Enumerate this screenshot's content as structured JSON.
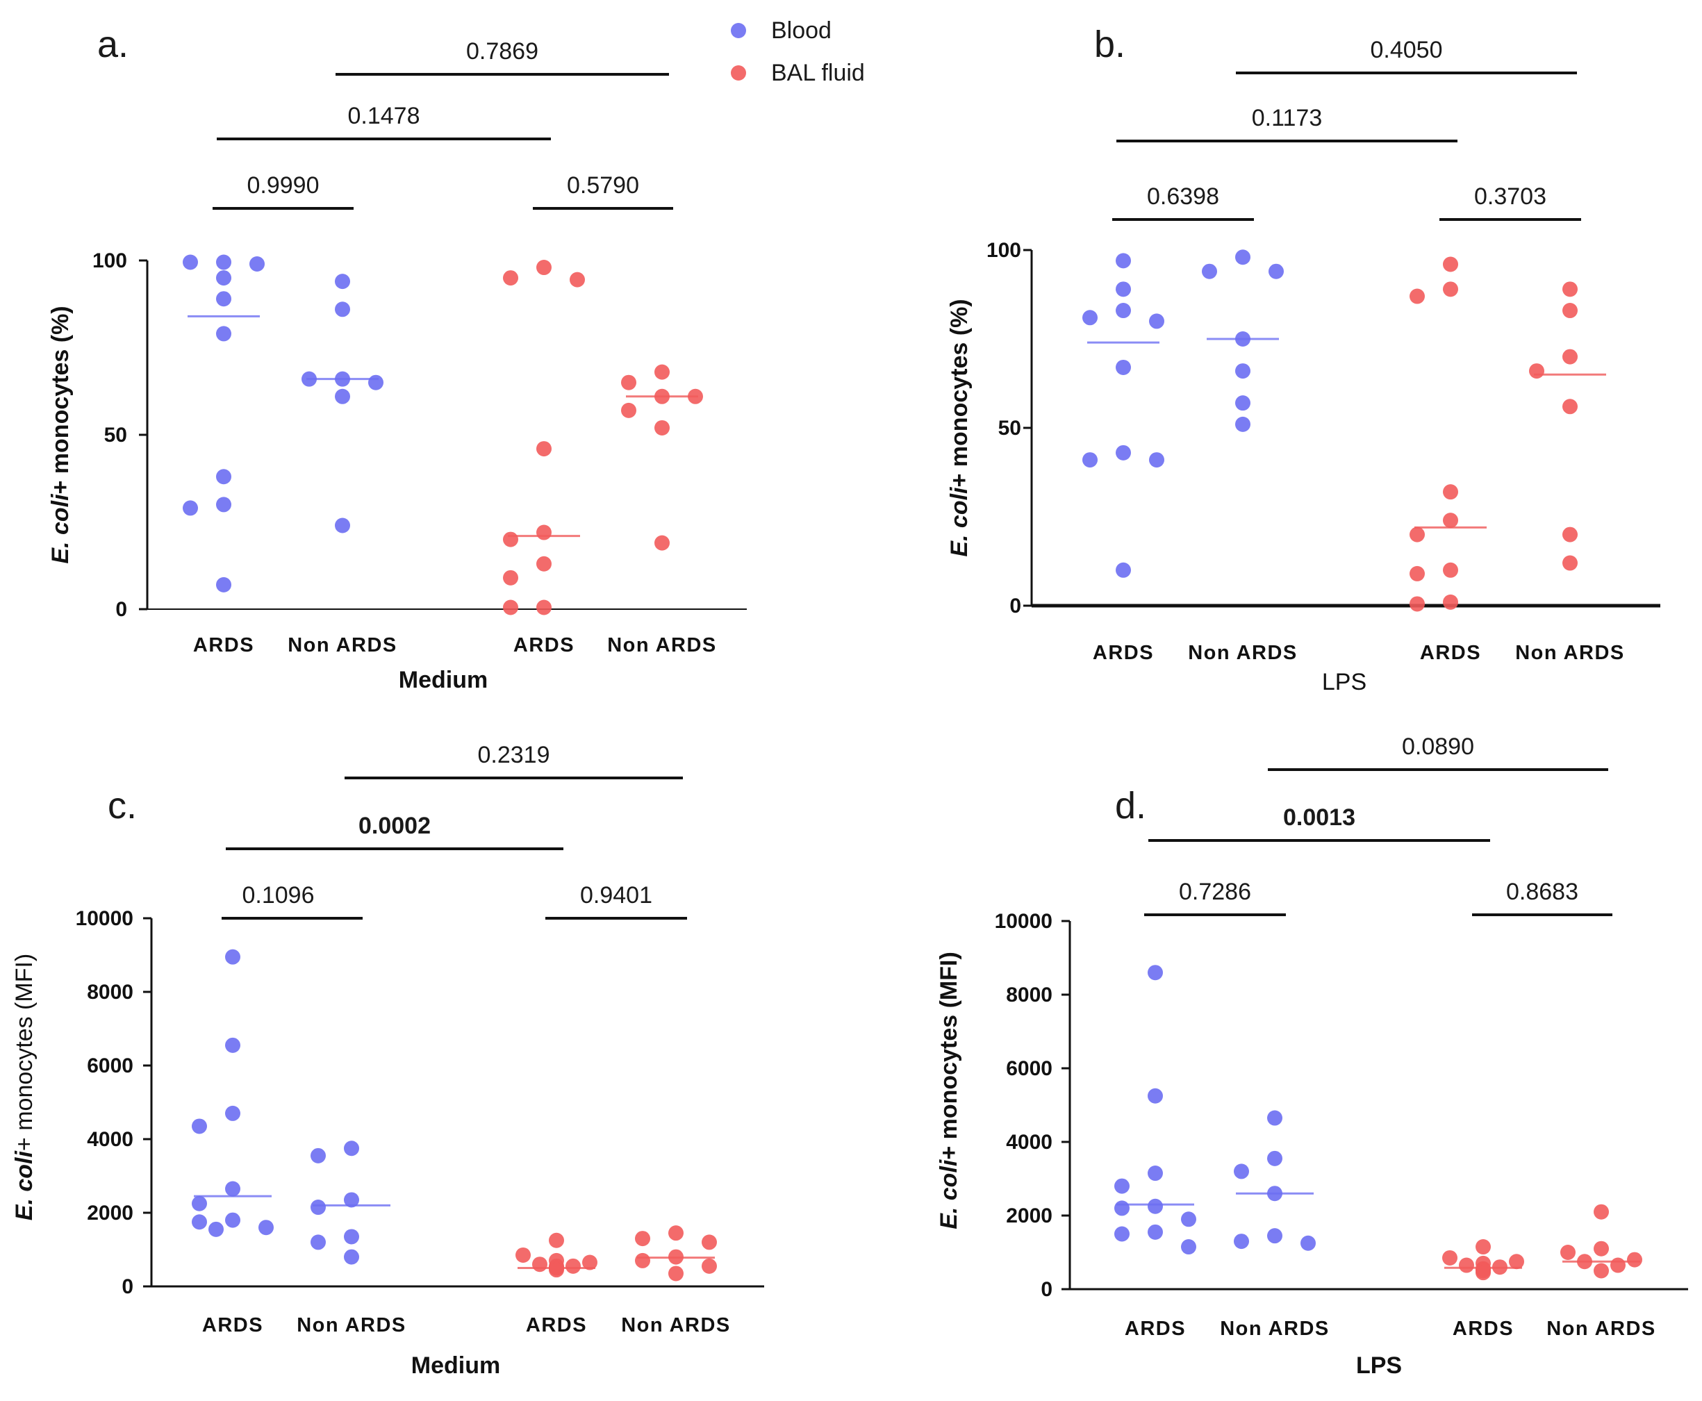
{
  "legend": {
    "items": [
      {
        "label": "Blood",
        "color": "#6b6ef2"
      },
      {
        "label": "BAL fluid",
        "color": "#f25b5b"
      }
    ]
  },
  "colors": {
    "blood": "#6b6ef2",
    "bal": "#f25b5b",
    "blood_median": "#8a8cf5",
    "bal_median": "#f27a7a",
    "axis": "#111111"
  },
  "chart_data": [
    {
      "panel": "a.",
      "type": "scatter",
      "xlabel": "Medium",
      "ylabel_italic": "E. coli",
      "ylabel_rest": "+ monocytes (%)",
      "ylim": [
        0,
        100
      ],
      "yticks": [
        "0",
        "50",
        "100"
      ],
      "groups": [
        {
          "label": "ARDS",
          "series": "Blood",
          "median": 84,
          "values": [
            99.5,
            99.5,
            99,
            95,
            89,
            79,
            38,
            30,
            29,
            7
          ]
        },
        {
          "label": "Non ARDS",
          "series": "Blood",
          "median": 66,
          "values": [
            94,
            86,
            66,
            66,
            65,
            61,
            24
          ]
        },
        {
          "label": "ARDS",
          "series": "BAL fluid",
          "median": 21,
          "values": [
            98,
            95,
            94.5,
            46,
            22,
            20,
            13,
            9,
            0.5,
            0.5
          ]
        },
        {
          "label": "Non ARDS",
          "series": "BAL fluid",
          "median": 61,
          "values": [
            68,
            65,
            61,
            61,
            57,
            52,
            19
          ]
        }
      ],
      "comparisons": [
        {
          "p": "0.9990",
          "bold": false,
          "from": 0,
          "to": 1,
          "tier": 0
        },
        {
          "p": "0.5790",
          "bold": false,
          "from": 2,
          "to": 3,
          "tier": 0
        },
        {
          "p": "0.1478",
          "bold": false,
          "from": 0,
          "to": 2,
          "tier": 1
        },
        {
          "p": "0.7869",
          "bold": false,
          "from": 1,
          "to": 3,
          "tier": 2
        }
      ]
    },
    {
      "panel": "b.",
      "type": "scatter",
      "xlabel": "LPS",
      "ylabel_italic": "E. coli",
      "ylabel_rest": "+ monocytes (%)",
      "ylim": [
        0,
        100
      ],
      "yticks": [
        "0",
        "50",
        "100"
      ],
      "groups": [
        {
          "label": "ARDS",
          "series": "Blood",
          "median": 74,
          "values": [
            97,
            89,
            83,
            81,
            80,
            67,
            43,
            41,
            41,
            10
          ]
        },
        {
          "label": "Non ARDS",
          "series": "Blood",
          "median": 75,
          "values": [
            98,
            94,
            94,
            75,
            66,
            57,
            51
          ]
        },
        {
          "label": "ARDS",
          "series": "BAL fluid",
          "median": 22,
          "values": [
            96,
            89,
            87,
            32,
            24,
            20,
            10,
            9,
            1,
            0.5
          ]
        },
        {
          "label": "Non ARDS",
          "series": "BAL fluid",
          "median": 65,
          "values": [
            89,
            83,
            70,
            66,
            56,
            20,
            12
          ]
        }
      ],
      "comparisons": [
        {
          "p": "0.6398",
          "bold": false,
          "from": 0,
          "to": 1,
          "tier": 0
        },
        {
          "p": "0.3703",
          "bold": false,
          "from": 2,
          "to": 3,
          "tier": 0
        },
        {
          "p": "0.1173",
          "bold": false,
          "from": 0,
          "to": 2,
          "tier": 1
        },
        {
          "p": "0.4050",
          "bold": false,
          "from": 1,
          "to": 3,
          "tier": 2
        }
      ]
    },
    {
      "panel": "c.",
      "type": "scatter",
      "xlabel": "Medium",
      "ylabel_italic": "E. coli",
      "ylabel_rest": "+ monocytes (MFI)",
      "ylim": [
        0,
        10000
      ],
      "yticks": [
        "0",
        "2000",
        "4000",
        "6000",
        "8000",
        "10000"
      ],
      "groups": [
        {
          "label": "ARDS",
          "series": "Blood",
          "median": 2450,
          "values": [
            8950,
            6550,
            4700,
            4350,
            2650,
            2250,
            1800,
            1750,
            1600,
            1550
          ]
        },
        {
          "label": "Non ARDS",
          "series": "Blood",
          "median": 2200,
          "values": [
            3750,
            3550,
            2350,
            2150,
            1350,
            1200,
            800
          ]
        },
        {
          "label": "ARDS",
          "series": "BAL fluid",
          "median": 500,
          "values": [
            1250,
            850,
            700,
            650,
            600,
            550,
            550,
            500,
            500,
            450
          ]
        },
        {
          "label": "Non ARDS",
          "series": "BAL fluid",
          "median": 780,
          "values": [
            1450,
            1300,
            1200,
            800,
            700,
            550,
            350
          ]
        }
      ],
      "comparisons": [
        {
          "p": "0.1096",
          "bold": false,
          "from": 0,
          "to": 1,
          "tier": 0
        },
        {
          "p": "0.9401",
          "bold": false,
          "from": 2,
          "to": 3,
          "tier": 0
        },
        {
          "p": "0.0002",
          "bold": true,
          "from": 0,
          "to": 2,
          "tier": 1
        },
        {
          "p": "0.2319",
          "bold": false,
          "from": 1,
          "to": 3,
          "tier": 2
        }
      ]
    },
    {
      "panel": "d.",
      "type": "scatter",
      "xlabel": "LPS",
      "ylabel_italic": "E. coli",
      "ylabel_rest": "+ monocytes (MFI)",
      "ylim": [
        0,
        10000
      ],
      "yticks": [
        "0",
        "2000",
        "4000",
        "6000",
        "8000",
        "10000"
      ],
      "groups": [
        {
          "label": "ARDS",
          "series": "Blood",
          "median": 2300,
          "values": [
            8600,
            5250,
            3150,
            2800,
            2250,
            2200,
            1900,
            1550,
            1500,
            1150
          ]
        },
        {
          "label": "Non ARDS",
          "series": "Blood",
          "median": 2600,
          "values": [
            4650,
            3550,
            3200,
            2600,
            1450,
            1300,
            1250
          ]
        },
        {
          "label": "ARDS",
          "series": "BAL fluid",
          "median": 580,
          "values": [
            1150,
            850,
            750,
            700,
            650,
            600,
            550,
            550,
            500,
            450
          ]
        },
        {
          "label": "Non ARDS",
          "series": "BAL fluid",
          "median": 750,
          "values": [
            2100,
            1100,
            1000,
            800,
            750,
            650,
            500
          ]
        }
      ],
      "comparisons": [
        {
          "p": "0.7286",
          "bold": false,
          "from": 0,
          "to": 1,
          "tier": 0
        },
        {
          "p": "0.8683",
          "bold": false,
          "from": 2,
          "to": 3,
          "tier": 0
        },
        {
          "p": "0.0013",
          "bold": true,
          "from": 0,
          "to": 2,
          "tier": 1
        },
        {
          "p": "0.0890",
          "bold": false,
          "from": 1,
          "to": 3,
          "tier": 2
        }
      ]
    }
  ]
}
